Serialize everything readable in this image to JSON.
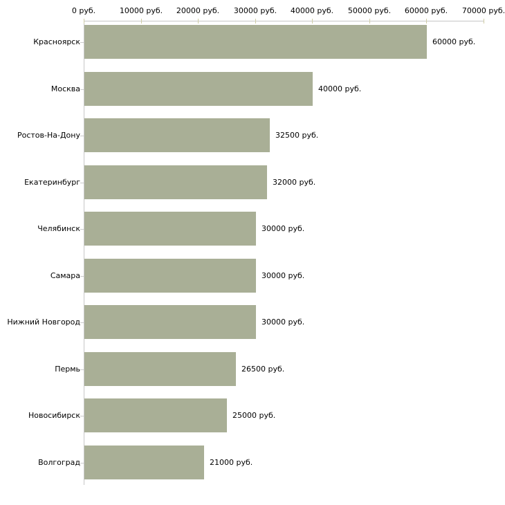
{
  "chart_data": {
    "type": "bar",
    "orientation": "horizontal",
    "title": "",
    "xlabel": "",
    "ylabel": "",
    "unit": "руб.",
    "grid": false,
    "legend": "none",
    "xlim": [
      0,
      70000
    ],
    "x_ticks": [
      0,
      10000,
      20000,
      30000,
      40000,
      50000,
      60000,
      70000
    ],
    "x_tick_labels": [
      "0 руб.",
      "10000 руб.",
      "20000 руб.",
      "30000 руб.",
      "40000 руб.",
      "50000 руб.",
      "60000 руб.",
      "70000 руб."
    ],
    "categories": [
      "Красноярск",
      "Москва",
      "Ростов-На-Дону",
      "Екатеринбург",
      "Челябинск",
      "Самара",
      "Нижний Новгород",
      "Пермь",
      "Новосибирск",
      "Волгоград"
    ],
    "values": [
      60000,
      40000,
      32500,
      32000,
      30000,
      30000,
      30000,
      26500,
      25000,
      21000
    ],
    "value_labels": [
      "60000 руб.",
      "40000 руб.",
      "32500 руб.",
      "32000 руб.",
      "30000 руб.",
      "30000 руб.",
      "30000 руб.",
      "26500 руб.",
      "25000 руб.",
      "21000 руб."
    ],
    "colors": {
      "bar": "#a9af96",
      "axis": "#c6c6c6",
      "x_tick": "#cfcda5",
      "y_tick": "#c9c9c9",
      "text": "#000000",
      "background": "#ffffff"
    }
  }
}
